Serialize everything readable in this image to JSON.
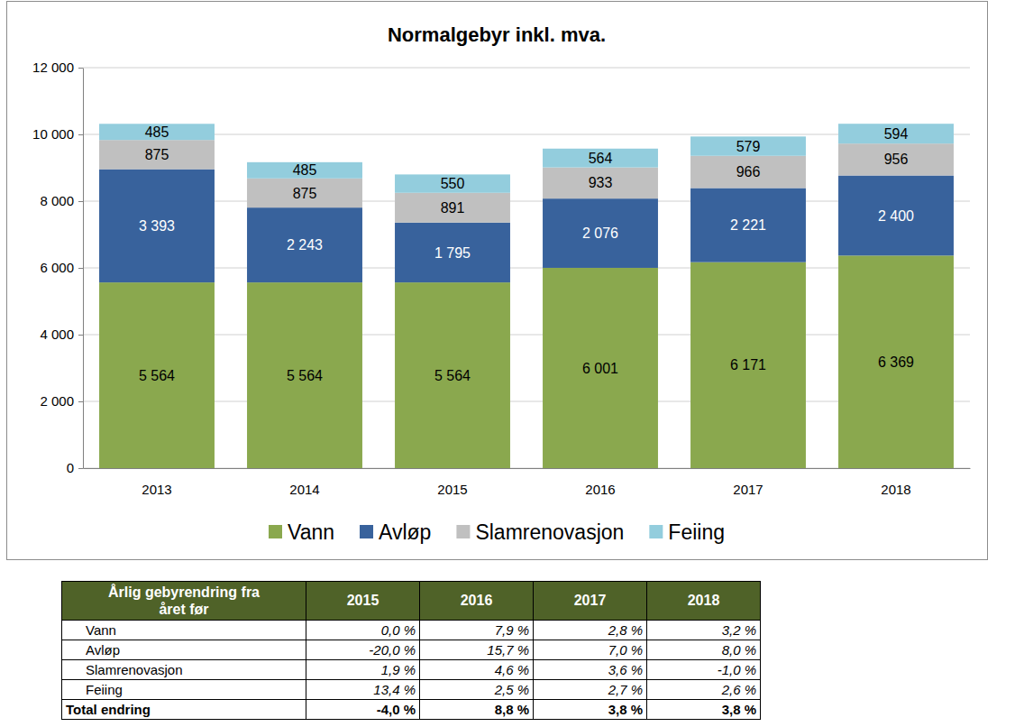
{
  "chart_data": {
    "type": "bar",
    "title": "Normalgebyr inkl. mva.",
    "stacked": true,
    "data_labels": true,
    "grid": true,
    "legend": "bottom",
    "categories": [
      "2013",
      "2014",
      "2015",
      "2016",
      "2017",
      "2018"
    ],
    "series": [
      {
        "name": "Vann",
        "color": "#8aa84e",
        "values": [
          5564,
          5564,
          5564,
          6001,
          6171,
          6369
        ],
        "value_labels": [
          "5 564",
          "5 564",
          "5 564",
          "6 001",
          "6 171",
          "6 369"
        ]
      },
      {
        "name": "Avløp",
        "color": "#38629c",
        "values": [
          3393,
          2243,
          1795,
          2076,
          2221,
          2400
        ],
        "value_labels": [
          "3 393",
          "2 243",
          "1 795",
          "2 076",
          "2 221",
          "2 400"
        ]
      },
      {
        "name": "Slamrenovasjon",
        "color": "#c0c0c0",
        "values": [
          875,
          875,
          891,
          933,
          966,
          956
        ]
      },
      {
        "name": "Feiing",
        "color": "#93cddd",
        "values": [
          485,
          485,
          550,
          564,
          579,
          594
        ]
      }
    ],
    "ylim": [
      0,
      12000
    ],
    "yticks": [
      0,
      {
        "value": 2000,
        "label": "2 000"
      },
      {
        "value": 4000,
        "label": "4 000"
      },
      {
        "value": 6000,
        "label": "6 000"
      },
      {
        "value": 8000,
        "label": "8 000"
      },
      {
        "value": 10000,
        "label": "10 000"
      },
      {
        "value": 12000,
        "label": "12 000"
      }
    ]
  },
  "table": {
    "header": [
      "Årlig gebyrendring fra året før",
      "2015",
      "2016",
      "2017",
      "2018"
    ],
    "rows": [
      [
        "Vann",
        "0,0 %",
        "7,9 %",
        "2,8 %",
        "3,2 %"
      ],
      [
        "Avløp",
        "-20,0 %",
        "15,7 %",
        "7,0 %",
        "8,0 %"
      ],
      [
        "Slamrenovasjon",
        "1,9 %",
        "4,6 %",
        "3,6 %",
        "-1,0 %"
      ],
      [
        "Feiing",
        "13,4 %",
        "2,5 %",
        "2,7 %",
        "2,6 %"
      ],
      [
        "Total endring",
        "-4,0 %",
        "8,8 %",
        "3,8 %",
        "3,8 %"
      ]
    ]
  }
}
